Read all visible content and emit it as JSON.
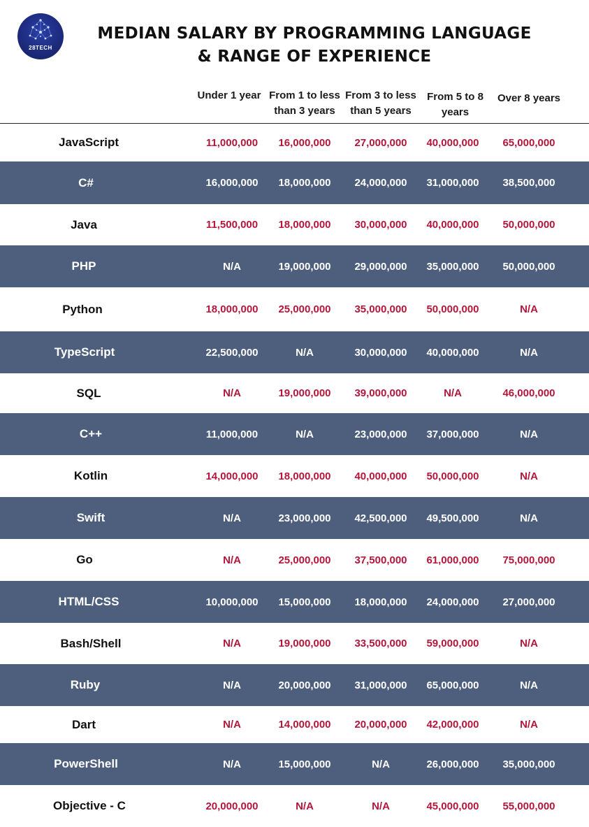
{
  "logo": {
    "text": "28TECH"
  },
  "title": {
    "line1": "MEDIAN SALARY BY PROGRAMMING LANGUAGE",
    "line2": "& RANGE OF EXPERIENCE"
  },
  "columns": [
    "Under 1 year",
    "From 1 to less than 3 years",
    "From 3 to less than 5 years",
    "From 5 to 8 years",
    "Over 8 years"
  ],
  "rows": [
    {
      "language": "JavaScript",
      "values": [
        "11,000,000",
        "16,000,000",
        "27,000,000",
        "40,000,000",
        "65,000,000"
      ]
    },
    {
      "language": "C#",
      "values": [
        "16,000,000",
        "18,000,000",
        "24,000,000",
        "31,000,000",
        "38,500,000"
      ]
    },
    {
      "language": "Java",
      "values": [
        "11,500,000",
        "18,000,000",
        "30,000,000",
        "40,000,000",
        "50,000,000"
      ]
    },
    {
      "language": "PHP",
      "values": [
        "N/A",
        "19,000,000",
        "29,000,000",
        "35,000,000",
        "50,000,000"
      ]
    },
    {
      "language": "Python",
      "values": [
        "18,000,000",
        "25,000,000",
        "35,000,000",
        "50,000,000",
        "N/A"
      ]
    },
    {
      "language": "TypeScript",
      "values": [
        "22,500,000",
        "N/A",
        "30,000,000",
        "40,000,000",
        "N/A"
      ]
    },
    {
      "language": "SQL",
      "values": [
        "N/A",
        "19,000,000",
        "39,000,000",
        "N/A",
        "46,000,000"
      ]
    },
    {
      "language": "C++",
      "values": [
        "11,000,000",
        "N/A",
        "23,000,000",
        "37,000,000",
        "N/A"
      ]
    },
    {
      "language": "Kotlin",
      "values": [
        "14,000,000",
        "18,000,000",
        "40,000,000",
        "50,000,000",
        "N/A"
      ]
    },
    {
      "language": "Swift",
      "values": [
        "N/A",
        "23,000,000",
        "42,500,000",
        "49,500,000",
        "N/A"
      ]
    },
    {
      "language": "Go",
      "values": [
        "N/A",
        "25,000,000",
        "37,500,000",
        "61,000,000",
        "75,000,000"
      ]
    },
    {
      "language": "HTML/CSS",
      "values": [
        "10,000,000",
        "15,000,000",
        "18,000,000",
        "24,000,000",
        "27,000,000"
      ]
    },
    {
      "language": "Bash/Shell",
      "values": [
        "N/A",
        "19,000,000",
        "33,500,000",
        "59,000,000",
        "N/A"
      ]
    },
    {
      "language": "Ruby",
      "values": [
        "N/A",
        "20,000,000",
        "31,000,000",
        "65,000,000",
        "N/A"
      ]
    },
    {
      "language": "Dart",
      "values": [
        "N/A",
        "14,000,000",
        "20,000,000",
        "42,000,000",
        "N/A"
      ]
    },
    {
      "language": "PowerShell",
      "values": [
        "N/A",
        "15,000,000",
        "N/A",
        "26,000,000",
        "35,000,000"
      ]
    },
    {
      "language": "Objective - C",
      "values": [
        "20,000,000",
        "N/A",
        "N/A",
        "45,000,000",
        "55,000,000"
      ]
    }
  ],
  "colors": {
    "dark_row": "#4d5f7d",
    "light_row": "#ffffff",
    "value_on_light": "#b3163a",
    "value_on_dark": "#ffffff"
  }
}
